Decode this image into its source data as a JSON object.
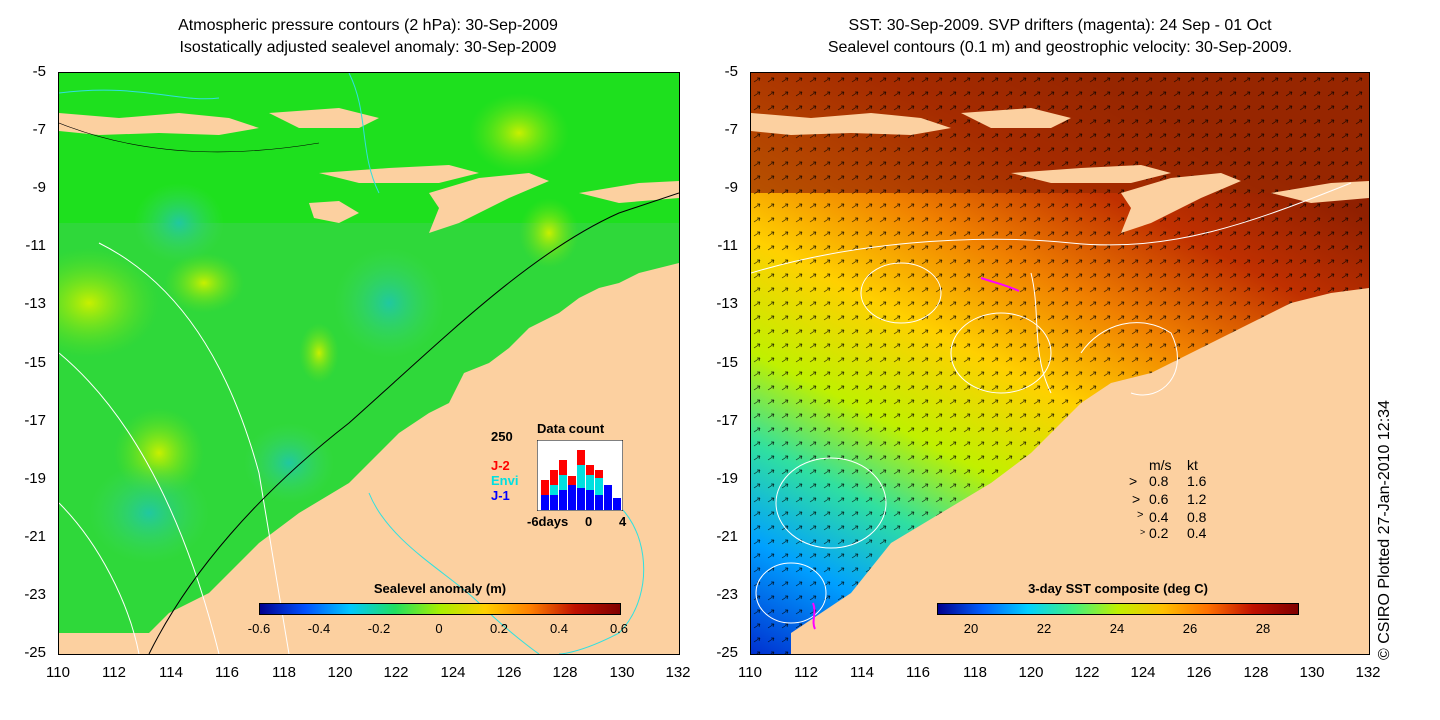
{
  "left_panel": {
    "title_line1": "Atmospheric pressure contours (2 hPa): 30-Sep-2009",
    "title_line2": "Isostatically adjusted sealevel anomaly: 30-Sep-2009",
    "colorbar_title": "Sealevel anomaly (m)",
    "colorbar_ticks": [
      "-0.6",
      "-0.4",
      "-0.2",
      "0",
      "0.2",
      "0.4",
      "0.6"
    ],
    "colorbar_colors": [
      "#00008f",
      "#0050ff",
      "#00c8ff",
      "#20e060",
      "#a8f000",
      "#ffd000",
      "#ff8000",
      "#c01000",
      "#800000"
    ],
    "inset": {
      "title": "Data count",
      "ymax_label": "250",
      "x_labels": [
        "-6days",
        "0",
        "4"
      ],
      "series": [
        {
          "name": "J-2",
          "color": "#ff0000"
        },
        {
          "name": "Envi",
          "color": "#00e0e0"
        },
        {
          "name": "J-1",
          "color": "#0000ff"
        }
      ]
    }
  },
  "right_panel": {
    "title_line1": "SST: 30-Sep-2009. SVP drifters (magenta): 24 Sep - 01 Oct",
    "title_line2": "Sealevel contours (0.1 m) and geostrophic velocity: 30-Sep-2009.",
    "colorbar_title": "3-day SST composite (deg C)",
    "colorbar_ticks": [
      "20",
      "22",
      "24",
      "26",
      "28"
    ],
    "colorbar_colors": [
      "#00008f",
      "#0060ff",
      "#00d0ff",
      "#40f080",
      "#c0f000",
      "#ffc000",
      "#ff7000",
      "#c01000",
      "#800000"
    ],
    "velocity_legend": {
      "header_ms": "m/s",
      "header_kt": "kt",
      "rows": [
        {
          "ms": "0.8",
          "kt": "1.6"
        },
        {
          "ms": "0.6",
          "kt": "1.2"
        },
        {
          "ms": "0.4",
          "kt": "0.8"
        },
        {
          "ms": "0.2",
          "kt": "0.4"
        }
      ]
    }
  },
  "axes": {
    "y_labels": [
      "-5",
      "-7",
      "-9",
      "-11",
      "-13",
      "-15",
      "-17",
      "-19",
      "-21",
      "-23",
      "-25"
    ],
    "x_labels": [
      "110",
      "112",
      "114",
      "116",
      "118",
      "120",
      "122",
      "124",
      "126",
      "128",
      "130",
      "132"
    ]
  },
  "credit": "© CSIRO Plotted 27-Jan-2010 12:34"
}
